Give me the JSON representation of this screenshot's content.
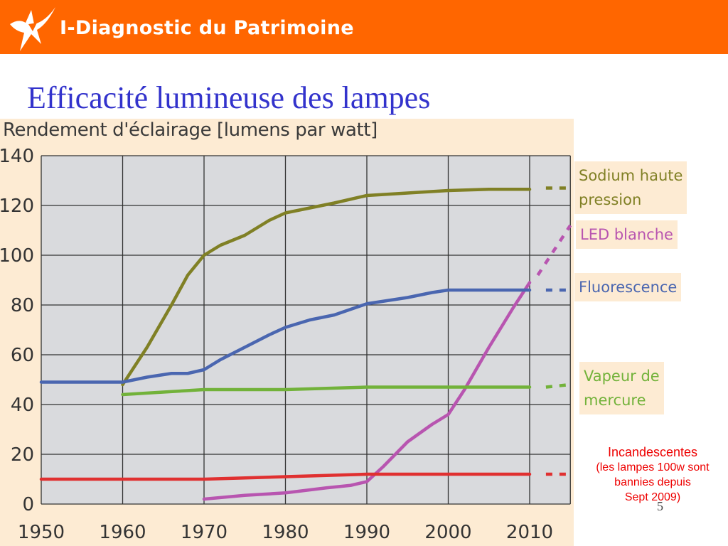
{
  "header": {
    "title": "I-Diagnostic du Patrimoine",
    "brand_color": "#ff6600",
    "logo_icon": "star-arrow-logo-icon"
  },
  "slide": {
    "title": "Efficacité lumineuse des lampes",
    "page_number": "5"
  },
  "chart_data": {
    "type": "line",
    "ylabel": "Rendement d'éclairage [lumens par watt]",
    "xlabel": "",
    "xlim": [
      1950,
      2015
    ],
    "ylim": [
      0,
      140
    ],
    "x_ticks": [
      "1950",
      "1960",
      "1970",
      "1980",
      "1990",
      "2000",
      "2010"
    ],
    "y_ticks": [
      "0",
      "20",
      "40",
      "60",
      "80",
      "100",
      "120",
      "140"
    ],
    "grid": true,
    "plot_background": "#d9dadd",
    "panel_background": "#fdebd3",
    "series": [
      {
        "name": "Sodium haute pression",
        "color": "#808025",
        "points": [
          [
            1960,
            48
          ],
          [
            1963,
            63
          ],
          [
            1966,
            80
          ],
          [
            1968,
            92
          ],
          [
            1970,
            100
          ],
          [
            1972,
            104
          ],
          [
            1975,
            108
          ],
          [
            1978,
            114
          ],
          [
            1980,
            117
          ],
          [
            1983,
            119
          ],
          [
            1986,
            121
          ],
          [
            1990,
            124
          ],
          [
            1995,
            125
          ],
          [
            2000,
            126
          ],
          [
            2005,
            126.5
          ],
          [
            2010,
            126.5
          ]
        ],
        "dashed": [
          [
            2012,
            127
          ],
          [
            2015,
            127
          ]
        ]
      },
      {
        "name": "LED blanche",
        "color": "#b855b0",
        "points": [
          [
            1970,
            2
          ],
          [
            1975,
            3.5
          ],
          [
            1980,
            4.5
          ],
          [
            1985,
            6.5
          ],
          [
            1988,
            7.5
          ],
          [
            1990,
            9
          ],
          [
            1992,
            15
          ],
          [
            1995,
            25
          ],
          [
            1998,
            32
          ],
          [
            2000,
            36
          ],
          [
            2002,
            46
          ],
          [
            2005,
            63
          ],
          [
            2008,
            79
          ],
          [
            2010,
            89
          ]
        ],
        "dashed": [
          [
            2011,
            92
          ],
          [
            2015,
            112
          ]
        ]
      },
      {
        "name": "Fluorescence",
        "color": "#4a66b0",
        "points": [
          [
            1950,
            49
          ],
          [
            1955,
            49
          ],
          [
            1960,
            49
          ],
          [
            1963,
            51
          ],
          [
            1966,
            52.5
          ],
          [
            1968,
            52.5
          ],
          [
            1970,
            54
          ],
          [
            1972,
            58
          ],
          [
            1975,
            63
          ],
          [
            1978,
            68
          ],
          [
            1980,
            71
          ],
          [
            1983,
            74
          ],
          [
            1986,
            76
          ],
          [
            1990,
            80.5
          ],
          [
            1995,
            83
          ],
          [
            1998,
            85
          ],
          [
            2000,
            86
          ],
          [
            2005,
            86
          ],
          [
            2010,
            86
          ]
        ],
        "dashed": [
          [
            2012,
            86
          ],
          [
            2015,
            86
          ]
        ]
      },
      {
        "name": "Vapeur de mercure",
        "color": "#72b23a",
        "points": [
          [
            1960,
            44
          ],
          [
            1965,
            45
          ],
          [
            1970,
            46
          ],
          [
            1980,
            46
          ],
          [
            1990,
            47
          ],
          [
            2000,
            47
          ],
          [
            2010,
            47
          ]
        ],
        "dashed": [
          [
            2012,
            47
          ],
          [
            2015,
            48
          ]
        ]
      },
      {
        "name": "Incandescentes",
        "color": "#e03030",
        "points": [
          [
            1950,
            10
          ],
          [
            1960,
            10
          ],
          [
            1970,
            10
          ],
          [
            1980,
            11
          ],
          [
            1990,
            12
          ],
          [
            2000,
            12
          ],
          [
            2010,
            12
          ]
        ],
        "dashed": [
          [
            2012,
            12
          ],
          [
            2015,
            12
          ]
        ]
      }
    ],
    "legend": [
      {
        "label_lines": [
          "Sodium haute",
          "pression"
        ],
        "color": "#808025"
      },
      {
        "label_lines": [
          "LED blanche"
        ],
        "color": "#b855b0"
      },
      {
        "label_lines": [
          "Fluorescence"
        ],
        "color": "#4a66b0"
      },
      {
        "label_lines": [
          "Vapeur de",
          "mercure"
        ],
        "color": "#72b23a"
      }
    ]
  },
  "note": {
    "heading": "Incandescentes",
    "line1": "(les lampes 100w sont",
    "line2": "bannies depuis",
    "line3": "Sept 2009)",
    "color": "#ee0000"
  }
}
